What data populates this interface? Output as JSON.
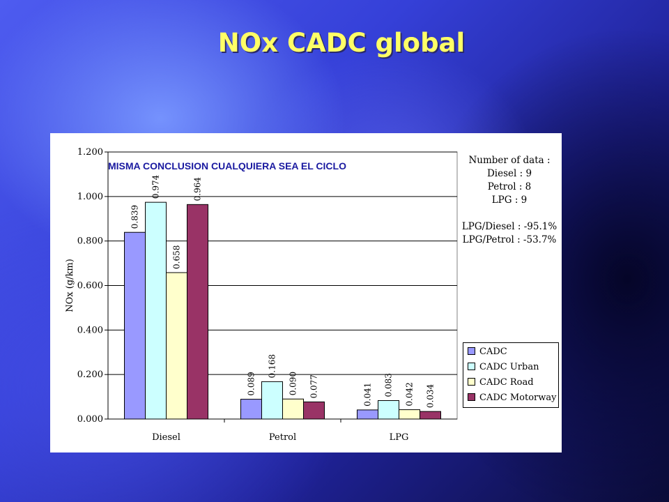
{
  "slide": {
    "title": "NOx CADC global"
  },
  "chart_data": {
    "type": "bar",
    "title": "",
    "annotation": "MISMA CONCLUSION CUALQUIERA SEA EL CICLO",
    "xlabel": "",
    "ylabel": "NOx (g/km)",
    "ylim": [
      0,
      1.2
    ],
    "yticks": [
      "0.000",
      "0.200",
      "0.400",
      "0.600",
      "0.800",
      "1.000",
      "1.200"
    ],
    "categories": [
      "Diesel",
      "Petrol",
      "LPG"
    ],
    "series": [
      {
        "name": "CADC",
        "color": "#9999ff",
        "values": [
          0.839,
          0.089,
          0.041
        ],
        "labels": [
          "0.839",
          "0.089",
          "0.041"
        ]
      },
      {
        "name": "CADC Urban",
        "color": "#ccffff",
        "values": [
          0.974,
          0.168,
          0.083
        ],
        "labels": [
          "0.974",
          "0.168",
          "0.083"
        ]
      },
      {
        "name": "CADC Road",
        "color": "#ffffcc",
        "values": [
          0.658,
          0.09,
          0.042
        ],
        "labels": [
          "0.658",
          "0.090",
          "0.042"
        ]
      },
      {
        "name": "CADC Motorway",
        "color": "#993366",
        "values": [
          0.964,
          0.077,
          0.034
        ],
        "labels": [
          "0.964",
          "0.077",
          "0.034"
        ]
      }
    ],
    "grid": true,
    "legend_position": "right",
    "info_text": {
      "number_of_data": [
        "Number of data :",
        "Diesel : 9",
        "Petrol : 8",
        "LPG : 9"
      ],
      "ratios": [
        "LPG/Diesel : -95.1%",
        "LPG/Petrol : -53.7%"
      ]
    }
  }
}
